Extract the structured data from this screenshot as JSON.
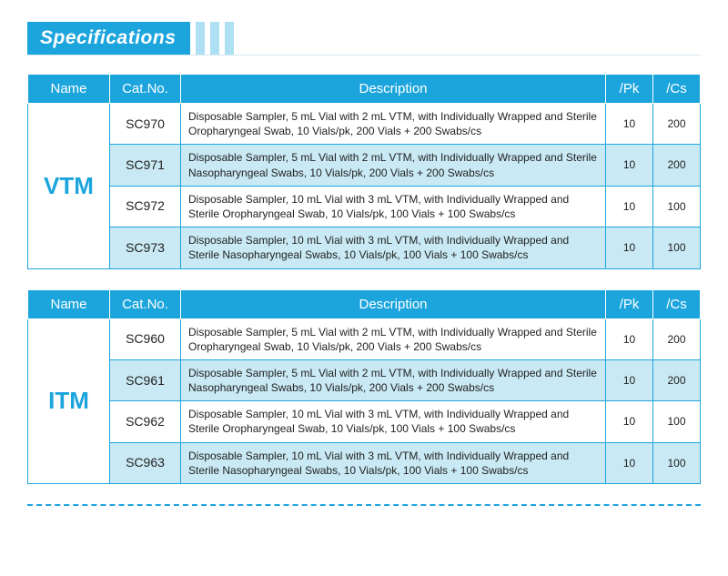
{
  "title": "Specifications",
  "colors": {
    "header_bg": "#1ca5dd",
    "alt_row_bg": "#c9e9f4",
    "dash_rule": "#1ca5dd"
  },
  "columns": {
    "name": "Name",
    "cat": "Cat.No.",
    "desc": "Description",
    "pk": "/Pk",
    "cs": "/Cs"
  },
  "tables": [
    {
      "name": "VTM",
      "rows": [
        {
          "cat": "SC970",
          "desc": "Disposable Sampler, 5 mL Vial with 2 mL VTM, with Individually Wrapped and Sterile Oropharyngeal Swab, 10 Vials/pk, 200 Vials + 200 Swabs/cs",
          "pk": "10",
          "cs": "200"
        },
        {
          "cat": "SC971",
          "desc": "Disposable Sampler, 5 mL Vial with 2 mL VTM, with Individually Wrapped and Sterile Nasopharyngeal Swabs, 10 Vials/pk, 200 Vials + 200 Swabs/cs",
          "pk": "10",
          "cs": "200"
        },
        {
          "cat": "SC972",
          "desc": "Disposable Sampler, 10 mL Vial with 3 mL VTM, with Individually Wrapped and Sterile Oropharyngeal Swab, 10 Vials/pk, 100 Vials + 100 Swabs/cs",
          "pk": "10",
          "cs": "100"
        },
        {
          "cat": "SC973",
          "desc": "Disposable Sampler, 10 mL Vial with 3 mL VTM, with Individually Wrapped and Sterile Nasopharyngeal Swabs, 10 Vials/pk, 100 Vials + 100 Swabs/cs",
          "pk": "10",
          "cs": "100"
        }
      ]
    },
    {
      "name": "ITM",
      "rows": [
        {
          "cat": "SC960",
          "desc": "Disposable Sampler, 5 mL Vial with 2 mL VTM, with Individually Wrapped and Sterile Oropharyngeal Swab, 10 Vials/pk, 200 Vials + 200 Swabs/cs",
          "pk": "10",
          "cs": "200"
        },
        {
          "cat": "SC961",
          "desc": "Disposable Sampler, 5 mL Vial with 2 mL VTM, with Individually Wrapped and Sterile Nasopharyngeal Swabs, 10 Vials/pk, 200 Vials + 200 Swabs/cs",
          "pk": "10",
          "cs": "200"
        },
        {
          "cat": "SC962",
          "desc": "Disposable Sampler, 10 mL Vial with 3 mL VTM, with Individually Wrapped and Sterile Oropharyngeal Swab, 10 Vials/pk, 100 Vials + 100 Swabs/cs",
          "pk": "10",
          "cs": "100"
        },
        {
          "cat": "SC963",
          "desc": "Disposable Sampler, 10 mL Vial with 3 mL VTM, with Individually Wrapped and Sterile Nasopharyngeal Swabs, 10 Vials/pk, 100 Vials + 100 Swabs/cs",
          "pk": "10",
          "cs": "100"
        }
      ]
    }
  ]
}
